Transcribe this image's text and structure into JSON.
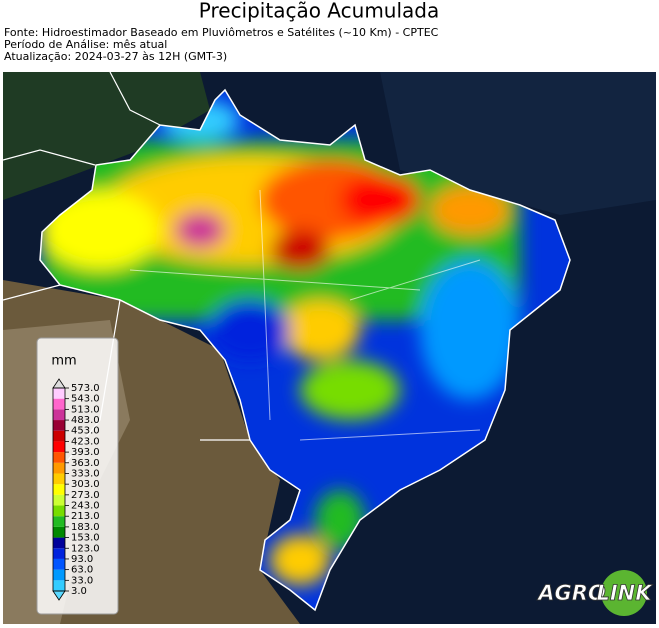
{
  "header": {
    "title": "Precipitação Acumulada",
    "lines": [
      "Fonte: Hidroestimador Baseado em Pluviômetros e Satélites (~10 Km) - CPTEC",
      "Período de Análise: mês atual",
      "Atualização: 2024-03-27 às 12H (GMT-3)"
    ]
  },
  "colorbar": {
    "unit": "mm",
    "ticks": [
      {
        "value": 3,
        "label": "3.0"
      },
      {
        "value": 33,
        "label": "33.0"
      },
      {
        "value": 63,
        "label": "63.0"
      },
      {
        "value": 93,
        "label": "93.0"
      },
      {
        "value": 123,
        "label": "123.0"
      },
      {
        "value": 153,
        "label": "153.0"
      },
      {
        "value": 183,
        "label": "183.0"
      },
      {
        "value": 213,
        "label": "213.0"
      },
      {
        "value": 243,
        "label": "243.0"
      },
      {
        "value": 273,
        "label": "273.0"
      },
      {
        "value": 303,
        "label": "303.0"
      },
      {
        "value": 333,
        "label": "333.0"
      },
      {
        "value": 363,
        "label": "363.0"
      },
      {
        "value": 393,
        "label": "393.0"
      },
      {
        "value": 423,
        "label": "423.0"
      },
      {
        "value": 453,
        "label": "453.0"
      },
      {
        "value": 483,
        "label": "483.0"
      },
      {
        "value": 513,
        "label": "513.0"
      },
      {
        "value": 543,
        "label": "543.0"
      },
      {
        "value": 573,
        "label": "573.0"
      }
    ],
    "colors": [
      "#33ccff",
      "#0099ff",
      "#0055ff",
      "#0022dd",
      "#00009a",
      "#008800",
      "#22bb22",
      "#77dd00",
      "#ccff33",
      "#ffff00",
      "#ffcc00",
      "#ff9900",
      "#ff5500",
      "#ff0000",
      "#cc0000",
      "#990033",
      "#cc3399",
      "#ff66cc",
      "#ffccff"
    ],
    "under_color": "#5ad8ff",
    "over_color": "#dddddd"
  },
  "logo": {
    "left": "AGRO",
    "right": "LINK"
  }
}
